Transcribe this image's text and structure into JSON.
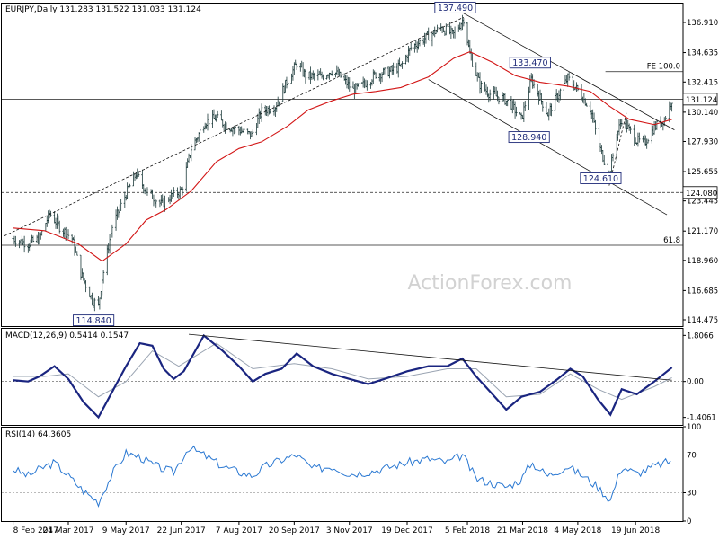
{
  "chart_data": [
    {
      "type": "candlestick",
      "header": {
        "symbol": "EURJPY,Daily",
        "ohlc": "131.283 131.522 131.033 131.124"
      },
      "ylim": [
        114.0,
        138.4
      ],
      "y_ticks": [
        "136.910",
        "134.635",
        "132.415",
        "130.140",
        "127.930",
        "125.655",
        "123.445",
        "121.170",
        "118.960",
        "116.685",
        "114.475"
      ],
      "current_price": "131.124",
      "levels": [
        {
          "label": "124.080",
          "value": 124.08,
          "style": "dashed",
          "highlight": true
        },
        {
          "label": "61.8",
          "value": 120.1,
          "style": "solid"
        },
        {
          "label": "",
          "value": 131.124,
          "style": "solid"
        }
      ],
      "fe_label": "FE 100.0",
      "fe_value": 133.2,
      "annotations": [
        {
          "label": "137.490",
          "date": "2018-02-02",
          "value": 137.49
        },
        {
          "label": "133.470",
          "date": "2018-03-28",
          "value": 133.47
        },
        {
          "label": "128.940",
          "date": "2018-03-20",
          "value": 128.94
        },
        {
          "label": "124.610",
          "date": "2018-05-29",
          "value": 124.61
        },
        {
          "label": "114.840",
          "date": "2017-04-17",
          "value": 114.84
        }
      ],
      "close_path": [
        [
          "2017-02-08",
          120.6
        ],
        [
          "2017-02-20",
          120.2
        ],
        [
          "2017-03-01",
          120.6
        ],
        [
          "2017-03-09",
          122.5
        ],
        [
          "2017-03-17",
          121.5
        ],
        [
          "2017-03-27",
          120.6
        ],
        [
          "2017-04-03",
          118.0
        ],
        [
          "2017-04-12",
          116.0
        ],
        [
          "2017-04-17",
          115.5
        ],
        [
          "2017-04-20",
          117.6
        ],
        [
          "2017-04-28",
          121.5
        ],
        [
          "2017-05-09",
          124.0
        ],
        [
          "2017-05-17",
          125.5
        ],
        [
          "2017-05-25",
          124.2
        ],
        [
          "2017-06-06",
          123.2
        ],
        [
          "2017-06-14",
          123.8
        ],
        [
          "2017-06-22",
          124.2
        ],
        [
          "2017-06-30",
          127.4
        ],
        [
          "2017-07-11",
          129.4
        ],
        [
          "2017-07-20",
          129.7
        ],
        [
          "2017-07-28",
          129.1
        ],
        [
          "2017-08-07",
          128.8
        ],
        [
          "2017-08-17",
          128.4
        ],
        [
          "2017-08-25",
          130.2
        ],
        [
          "2017-09-05",
          130.6
        ],
        [
          "2017-09-15",
          132.6
        ],
        [
          "2017-09-22",
          133.8
        ],
        [
          "2017-09-29",
          132.9
        ],
        [
          "2017-10-11",
          132.8
        ],
        [
          "2017-10-20",
          133.3
        ],
        [
          "2017-10-27",
          132.8
        ],
        [
          "2017-11-06",
          131.8
        ],
        [
          "2017-11-14",
          132.2
        ],
        [
          "2017-11-24",
          133.0
        ],
        [
          "2017-12-05",
          133.2
        ],
        [
          "2017-12-14",
          133.6
        ],
        [
          "2017-12-22",
          135.0
        ],
        [
          "2018-01-05",
          135.9
        ],
        [
          "2018-01-15",
          136.5
        ],
        [
          "2018-01-25",
          136.0
        ],
        [
          "2018-02-02",
          137.2
        ],
        [
          "2018-02-07",
          134.5
        ],
        [
          "2018-02-15",
          132.2
        ],
        [
          "2018-02-23",
          131.5
        ],
        [
          "2018-03-05",
          131.2
        ],
        [
          "2018-03-12",
          130.7
        ],
        [
          "2018-03-20",
          129.6
        ],
        [
          "2018-03-28",
          132.6
        ],
        [
          "2018-04-04",
          131.2
        ],
        [
          "2018-04-10",
          130.0
        ],
        [
          "2018-04-18",
          131.4
        ],
        [
          "2018-04-26",
          132.7
        ],
        [
          "2018-05-04",
          131.8
        ],
        [
          "2018-05-14",
          130.4
        ],
        [
          "2018-05-21",
          127.6
        ],
        [
          "2018-05-29",
          125.4
        ],
        [
          "2018-06-04",
          128.4
        ],
        [
          "2018-06-08",
          129.6
        ],
        [
          "2018-06-14",
          128.8
        ],
        [
          "2018-06-20",
          128.0
        ],
        [
          "2018-06-26",
          127.8
        ],
        [
          "2018-07-04",
          129.0
        ],
        [
          "2018-07-12",
          129.6
        ],
        [
          "2018-07-18",
          131.1
        ]
      ],
      "ma_path": [
        [
          "2017-02-08",
          121.4
        ],
        [
          "2017-03-05",
          121.2
        ],
        [
          "2017-04-01",
          120.2
        ],
        [
          "2017-04-20",
          118.9
        ],
        [
          "2017-05-09",
          120.2
        ],
        [
          "2017-05-25",
          122.0
        ],
        [
          "2017-06-10",
          122.8
        ],
        [
          "2017-06-30",
          124.2
        ],
        [
          "2017-07-20",
          126.4
        ],
        [
          "2017-08-07",
          127.4
        ],
        [
          "2017-08-25",
          127.9
        ],
        [
          "2017-09-15",
          129.1
        ],
        [
          "2017-10-01",
          130.3
        ],
        [
          "2017-10-20",
          131.0
        ],
        [
          "2017-11-06",
          131.5
        ],
        [
          "2017-11-24",
          131.7
        ],
        [
          "2017-12-14",
          132.0
        ],
        [
          "2018-01-05",
          132.8
        ],
        [
          "2018-01-25",
          134.2
        ],
        [
          "2018-02-07",
          134.7
        ],
        [
          "2018-02-25",
          133.9
        ],
        [
          "2018-03-15",
          132.9
        ],
        [
          "2018-04-04",
          132.4
        ],
        [
          "2018-04-26",
          132.1
        ],
        [
          "2018-05-14",
          131.7
        ],
        [
          "2018-05-29",
          130.6
        ],
        [
          "2018-06-14",
          129.6
        ],
        [
          "2018-07-04",
          129.2
        ],
        [
          "2018-07-18",
          129.6
        ]
      ],
      "trendlines": [
        {
          "label": "",
          "from": [
            "2017-02-01",
            120.8
          ],
          "to": [
            "2018-02-02",
            137.3
          ],
          "style": "dashed"
        },
        {
          "label": "",
          "from": [
            "2018-02-02",
            137.6
          ],
          "to": [
            "2018-07-20",
            128.8
          ],
          "style": "solid"
        },
        {
          "label": "",
          "from": [
            "2018-01-05",
            132.6
          ],
          "to": [
            "2018-07-14",
            122.4
          ],
          "style": "solid"
        },
        {
          "label": "",
          "from": [
            "2018-05-29",
            124.6
          ],
          "to": [
            "2018-06-12",
            130.2
          ],
          "style": "dashed"
        }
      ],
      "x_labels": [
        {
          "label": "8 Feb 2017",
          "date": "2017-02-08"
        },
        {
          "label": "24 Mar 2017",
          "date": "2017-03-24"
        },
        {
          "label": "9 May 2017",
          "date": "2017-05-09"
        },
        {
          "label": "22 Jun 2017",
          "date": "2017-06-22"
        },
        {
          "label": "7 Aug 2017",
          "date": "2017-08-07"
        },
        {
          "label": "20 Sep 2017",
          "date": "2017-09-20"
        },
        {
          "label": "3 Nov 2017",
          "date": "2017-11-03"
        },
        {
          "label": "19 Dec 2017",
          "date": "2017-12-19"
        },
        {
          "label": "5 Feb 2018",
          "date": "2018-02-05"
        },
        {
          "label": "21 Mar 2018",
          "date": "2018-03-21"
        },
        {
          "label": "4 May 2018",
          "date": "2018-05-04"
        },
        {
          "label": "19 Jun 2018",
          "date": "2018-06-19"
        }
      ],
      "watermark": "ActionForex.com"
    },
    {
      "type": "line",
      "header": "MACD(12,26,9) 0.5414 0.1547",
      "ylim": [
        -1.7,
        2.1
      ],
      "y_ticks": [
        {
          "label": "1.8066",
          "value": 1.8066
        },
        {
          "label": "0.00",
          "value": 0.0
        },
        {
          "label": "-1.4061",
          "value": -1.4061
        }
      ],
      "macd": [
        [
          "2017-02-08",
          0.05
        ],
        [
          "2017-02-20",
          0.0
        ],
        [
          "2017-03-01",
          0.2
        ],
        [
          "2017-03-13",
          0.6
        ],
        [
          "2017-03-24",
          0.1
        ],
        [
          "2017-04-05",
          -0.8
        ],
        [
          "2017-04-17",
          -1.4
        ],
        [
          "2017-04-28",
          -0.4
        ],
        [
          "2017-05-09",
          0.6
        ],
        [
          "2017-05-20",
          1.5
        ],
        [
          "2017-05-30",
          1.4
        ],
        [
          "2017-06-08",
          0.5
        ],
        [
          "2017-06-16",
          0.1
        ],
        [
          "2017-06-24",
          0.4
        ],
        [
          "2017-07-10",
          1.8
        ],
        [
          "2017-07-25",
          1.2
        ],
        [
          "2017-08-07",
          0.6
        ],
        [
          "2017-08-18",
          0.0
        ],
        [
          "2017-08-28",
          0.3
        ],
        [
          "2017-09-10",
          0.5
        ],
        [
          "2017-09-22",
          1.1
        ],
        [
          "2017-10-05",
          0.6
        ],
        [
          "2017-10-20",
          0.3
        ],
        [
          "2017-11-03",
          0.1
        ],
        [
          "2017-11-18",
          -0.1
        ],
        [
          "2017-12-01",
          0.1
        ],
        [
          "2017-12-19",
          0.4
        ],
        [
          "2018-01-05",
          0.6
        ],
        [
          "2018-01-20",
          0.6
        ],
        [
          "2018-02-01",
          0.9
        ],
        [
          "2018-02-12",
          0.2
        ],
        [
          "2018-02-25",
          -0.5
        ],
        [
          "2018-03-08",
          -1.1
        ],
        [
          "2018-03-20",
          -0.6
        ],
        [
          "2018-04-04",
          -0.4
        ],
        [
          "2018-04-18",
          0.1
        ],
        [
          "2018-04-28",
          0.5
        ],
        [
          "2018-05-08",
          0.2
        ],
        [
          "2018-05-20",
          -0.7
        ],
        [
          "2018-05-30",
          -1.3
        ],
        [
          "2018-06-08",
          -0.3
        ],
        [
          "2018-06-20",
          -0.5
        ],
        [
          "2018-07-04",
          0.0
        ],
        [
          "2018-07-18",
          0.55
        ]
      ],
      "signal": [
        [
          "2017-02-08",
          0.2
        ],
        [
          "2017-03-05",
          0.2
        ],
        [
          "2017-03-24",
          0.3
        ],
        [
          "2017-04-17",
          -0.6
        ],
        [
          "2017-05-09",
          0.0
        ],
        [
          "2017-05-30",
          1.2
        ],
        [
          "2017-06-20",
          0.6
        ],
        [
          "2017-07-20",
          1.5
        ],
        [
          "2017-08-18",
          0.5
        ],
        [
          "2017-09-20",
          0.7
        ],
        [
          "2017-10-20",
          0.5
        ],
        [
          "2017-11-18",
          0.1
        ],
        [
          "2017-12-19",
          0.2
        ],
        [
          "2018-01-20",
          0.5
        ],
        [
          "2018-02-12",
          0.5
        ],
        [
          "2018-03-08",
          -0.6
        ],
        [
          "2018-04-04",
          -0.5
        ],
        [
          "2018-04-28",
          0.3
        ],
        [
          "2018-05-20",
          -0.3
        ],
        [
          "2018-06-08",
          -0.7
        ],
        [
          "2018-07-04",
          -0.2
        ],
        [
          "2018-07-18",
          0.15
        ]
      ],
      "trendline": {
        "from": [
          "2017-06-28",
          1.85
        ],
        "to": [
          "2018-07-18",
          0.05
        ]
      }
    },
    {
      "type": "line",
      "header": "RSI(14) 64.3605",
      "ylim": [
        0,
        100
      ],
      "y_ticks": [
        {
          "label": "100",
          "value": 100
        },
        {
          "label": "70",
          "value": 70
        },
        {
          "label": "30",
          "value": 30
        },
        {
          "label": "0",
          "value": 0
        }
      ],
      "levels": [
        70,
        30
      ],
      "rsi": [
        [
          "2017-02-08",
          55
        ],
        [
          "2017-02-20",
          48
        ],
        [
          "2017-03-01",
          55
        ],
        [
          "2017-03-13",
          62
        ],
        [
          "2017-03-24",
          48
        ],
        [
          "2017-04-05",
          32
        ],
        [
          "2017-04-17",
          20
        ],
        [
          "2017-04-28",
          50
        ],
        [
          "2017-05-09",
          72
        ],
        [
          "2017-05-20",
          68
        ],
        [
          "2017-05-30",
          60
        ],
        [
          "2017-06-08",
          55
        ],
        [
          "2017-06-16",
          52
        ],
        [
          "2017-06-28",
          78
        ],
        [
          "2017-07-10",
          70
        ],
        [
          "2017-07-25",
          58
        ],
        [
          "2017-08-07",
          52
        ],
        [
          "2017-08-18",
          48
        ],
        [
          "2017-08-28",
          58
        ],
        [
          "2017-09-10",
          65
        ],
        [
          "2017-09-22",
          70
        ],
        [
          "2017-10-05",
          55
        ],
        [
          "2017-10-20",
          58
        ],
        [
          "2017-11-03",
          50
        ],
        [
          "2017-11-18",
          52
        ],
        [
          "2017-12-01",
          56
        ],
        [
          "2017-12-19",
          62
        ],
        [
          "2018-01-05",
          66
        ],
        [
          "2018-01-20",
          62
        ],
        [
          "2018-02-01",
          70
        ],
        [
          "2018-02-12",
          45
        ],
        [
          "2018-02-25",
          40
        ],
        [
          "2018-03-08",
          36
        ],
        [
          "2018-03-20",
          44
        ],
        [
          "2018-03-28",
          62
        ],
        [
          "2018-04-10",
          48
        ],
        [
          "2018-04-26",
          58
        ],
        [
          "2018-05-08",
          48
        ],
        [
          "2018-05-20",
          36
        ],
        [
          "2018-05-30",
          22
        ],
        [
          "2018-06-08",
          58
        ],
        [
          "2018-06-20",
          50
        ],
        [
          "2018-07-04",
          58
        ],
        [
          "2018-07-18",
          64
        ]
      ]
    }
  ]
}
